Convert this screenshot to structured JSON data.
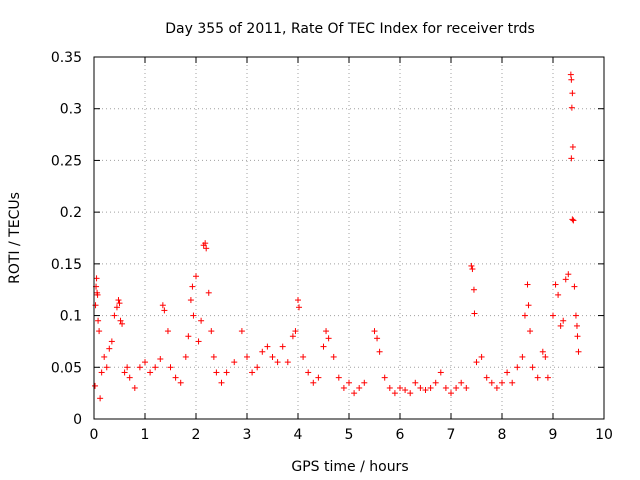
{
  "chart_data": {
    "type": "scatter",
    "title": "Day 355 of 2011, Rate Of TEC Index for receiver trds",
    "xlabel": "GPS time / hours",
    "ylabel": "ROTI / TECUs",
    "xlim": [
      0,
      10
    ],
    "ylim": [
      0,
      0.35
    ],
    "xticks": [
      0,
      1,
      2,
      3,
      4,
      5,
      6,
      7,
      8,
      9,
      10
    ],
    "xtick_labels": [
      "0",
      "1",
      "2",
      "3",
      "4",
      "5",
      "6",
      "7",
      "8",
      "9",
      "10"
    ],
    "yticks": [
      0,
      0.05,
      0.1,
      0.15,
      0.2,
      0.25,
      0.3,
      0.35
    ],
    "ytick_labels": [
      "0",
      "0.05",
      "0.1",
      "0.15",
      "0.2",
      "0.25",
      "0.3",
      "0.35"
    ],
    "grid": true,
    "marker": "+",
    "color": "#ff0000",
    "series": [
      {
        "name": "ROTI",
        "points": [
          [
            0.02,
            0.032
          ],
          [
            0.03,
            0.11
          ],
          [
            0.04,
            0.128
          ],
          [
            0.05,
            0.136
          ],
          [
            0.06,
            0.122
          ],
          [
            0.07,
            0.12
          ],
          [
            0.08,
            0.095
          ],
          [
            0.1,
            0.085
          ],
          [
            0.12,
            0.02
          ],
          [
            0.15,
            0.045
          ],
          [
            0.2,
            0.06
          ],
          [
            0.25,
            0.05
          ],
          [
            0.3,
            0.068
          ],
          [
            0.35,
            0.075
          ],
          [
            0.4,
            0.1
          ],
          [
            0.45,
            0.108
          ],
          [
            0.48,
            0.115
          ],
          [
            0.5,
            0.112
          ],
          [
            0.52,
            0.095
          ],
          [
            0.55,
            0.092
          ],
          [
            0.6,
            0.045
          ],
          [
            0.65,
            0.05
          ],
          [
            0.7,
            0.04
          ],
          [
            0.8,
            0.03
          ],
          [
            0.9,
            0.05
          ],
          [
            1.0,
            0.055
          ],
          [
            1.1,
            0.045
          ],
          [
            1.2,
            0.05
          ],
          [
            1.3,
            0.058
          ],
          [
            1.35,
            0.11
          ],
          [
            1.38,
            0.105
          ],
          [
            1.45,
            0.085
          ],
          [
            1.5,
            0.05
          ],
          [
            1.6,
            0.04
          ],
          [
            1.7,
            0.035
          ],
          [
            1.8,
            0.06
          ],
          [
            1.85,
            0.08
          ],
          [
            1.9,
            0.115
          ],
          [
            1.93,
            0.128
          ],
          [
            1.95,
            0.1
          ],
          [
            2.0,
            0.138
          ],
          [
            2.05,
            0.075
          ],
          [
            2.1,
            0.095
          ],
          [
            2.15,
            0.168
          ],
          [
            2.18,
            0.17
          ],
          [
            2.2,
            0.165
          ],
          [
            2.25,
            0.122
          ],
          [
            2.3,
            0.085
          ],
          [
            2.35,
            0.06
          ],
          [
            2.4,
            0.045
          ],
          [
            2.5,
            0.035
          ],
          [
            2.6,
            0.045
          ],
          [
            2.75,
            0.055
          ],
          [
            2.9,
            0.085
          ],
          [
            3.0,
            0.06
          ],
          [
            3.1,
            0.045
          ],
          [
            3.2,
            0.05
          ],
          [
            3.3,
            0.065
          ],
          [
            3.4,
            0.07
          ],
          [
            3.5,
            0.06
          ],
          [
            3.6,
            0.055
          ],
          [
            3.7,
            0.07
          ],
          [
            3.8,
            0.055
          ],
          [
            3.9,
            0.08
          ],
          [
            3.95,
            0.085
          ],
          [
            4.0,
            0.115
          ],
          [
            4.02,
            0.108
          ],
          [
            4.1,
            0.06
          ],
          [
            4.2,
            0.045
          ],
          [
            4.3,
            0.035
          ],
          [
            4.4,
            0.04
          ],
          [
            4.5,
            0.07
          ],
          [
            4.55,
            0.085
          ],
          [
            4.6,
            0.078
          ],
          [
            4.7,
            0.06
          ],
          [
            4.8,
            0.04
          ],
          [
            4.9,
            0.03
          ],
          [
            5.0,
            0.035
          ],
          [
            5.1,
            0.025
          ],
          [
            5.2,
            0.03
          ],
          [
            5.3,
            0.035
          ],
          [
            5.5,
            0.085
          ],
          [
            5.55,
            0.078
          ],
          [
            5.6,
            0.065
          ],
          [
            5.7,
            0.04
          ],
          [
            5.8,
            0.03
          ],
          [
            5.9,
            0.025
          ],
          [
            6.0,
            0.03
          ],
          [
            6.1,
            0.028
          ],
          [
            6.2,
            0.025
          ],
          [
            6.3,
            0.035
          ],
          [
            6.4,
            0.03
          ],
          [
            6.5,
            0.028
          ],
          [
            6.6,
            0.03
          ],
          [
            6.7,
            0.035
          ],
          [
            6.8,
            0.045
          ],
          [
            6.9,
            0.03
          ],
          [
            7.0,
            0.025
          ],
          [
            7.1,
            0.03
          ],
          [
            7.2,
            0.035
          ],
          [
            7.3,
            0.03
          ],
          [
            7.4,
            0.148
          ],
          [
            7.42,
            0.145
          ],
          [
            7.45,
            0.125
          ],
          [
            7.46,
            0.102
          ],
          [
            7.5,
            0.055
          ],
          [
            7.6,
            0.06
          ],
          [
            7.7,
            0.04
          ],
          [
            7.8,
            0.035
          ],
          [
            7.9,
            0.03
          ],
          [
            8.0,
            0.035
          ],
          [
            8.1,
            0.045
          ],
          [
            8.2,
            0.035
          ],
          [
            8.3,
            0.05
          ],
          [
            8.4,
            0.06
          ],
          [
            8.45,
            0.1
          ],
          [
            8.5,
            0.13
          ],
          [
            8.52,
            0.11
          ],
          [
            8.55,
            0.085
          ],
          [
            8.6,
            0.05
          ],
          [
            8.7,
            0.04
          ],
          [
            8.8,
            0.065
          ],
          [
            8.85,
            0.06
          ],
          [
            8.9,
            0.04
          ],
          [
            9.0,
            0.1
          ],
          [
            9.05,
            0.13
          ],
          [
            9.1,
            0.12
          ],
          [
            9.15,
            0.09
          ],
          [
            9.2,
            0.095
          ],
          [
            9.25,
            0.135
          ],
          [
            9.3,
            0.14
          ],
          [
            9.35,
            0.333
          ],
          [
            9.36,
            0.328
          ],
          [
            9.38,
            0.315
          ],
          [
            9.37,
            0.301
          ],
          [
            9.39,
            0.263
          ],
          [
            9.36,
            0.252
          ],
          [
            9.38,
            0.193
          ],
          [
            9.4,
            0.192
          ],
          [
            9.42,
            0.128
          ],
          [
            9.45,
            0.1
          ],
          [
            9.47,
            0.09
          ],
          [
            9.48,
            0.08
          ],
          [
            9.5,
            0.065
          ]
        ]
      }
    ]
  }
}
